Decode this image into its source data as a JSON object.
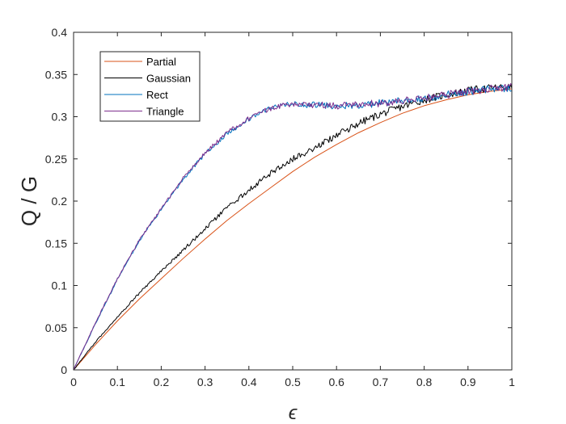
{
  "chart_data": {
    "type": "line",
    "xlabel": "ϵ",
    "ylabel": "Q / G",
    "xlim": [
      0,
      1
    ],
    "ylim": [
      0,
      0.4
    ],
    "xticks": [
      0,
      0.1,
      0.2,
      0.3,
      0.4,
      0.5,
      0.6,
      0.7,
      0.8,
      0.9,
      1
    ],
    "xtick_labels": [
      "0",
      "0.1",
      "0.2",
      "0.3",
      "0.4",
      "0.5",
      "0.6",
      "0.7",
      "0.8",
      "0.9",
      "1"
    ],
    "yticks": [
      0,
      0.05,
      0.1,
      0.15,
      0.2,
      0.25,
      0.3,
      0.35,
      0.4
    ],
    "ytick_labels": [
      "0",
      "0.05",
      "0.1",
      "0.15",
      "0.2",
      "0.25",
      "0.3",
      "0.35",
      "0.4"
    ],
    "grid": false,
    "legend": "top-left",
    "x": [
      0,
      0.05,
      0.1,
      0.15,
      0.2,
      0.25,
      0.3,
      0.35,
      0.4,
      0.45,
      0.5,
      0.55,
      0.6,
      0.65,
      0.7,
      0.75,
      0.8,
      0.85,
      0.9,
      0.95,
      1.0
    ],
    "series": [
      {
        "name": "Partial",
        "color": "#D95319",
        "noisy": false,
        "values": [
          0,
          0.03,
          0.058,
          0.084,
          0.108,
          0.132,
          0.155,
          0.177,
          0.197,
          0.216,
          0.235,
          0.252,
          0.267,
          0.281,
          0.293,
          0.304,
          0.313,
          0.32,
          0.326,
          0.33,
          0.333
        ]
      },
      {
        "name": "Gaussian",
        "color": "#000000",
        "noisy": true,
        "values": [
          0,
          0.033,
          0.063,
          0.091,
          0.117,
          0.142,
          0.167,
          0.192,
          0.213,
          0.233,
          0.25,
          0.263,
          0.278,
          0.292,
          0.303,
          0.312,
          0.32,
          0.326,
          0.331,
          0.334,
          0.335
        ]
      },
      {
        "name": "Rect",
        "color": "#0072BD",
        "noisy": true,
        "values": [
          0,
          0.055,
          0.107,
          0.153,
          0.19,
          0.226,
          0.256,
          0.28,
          0.297,
          0.31,
          0.315,
          0.314,
          0.313,
          0.314,
          0.316,
          0.319,
          0.322,
          0.326,
          0.33,
          0.333,
          0.334
        ]
      },
      {
        "name": "Triangle",
        "color": "#7E2F8E",
        "noisy": true,
        "values": [
          0,
          0.056,
          0.108,
          0.154,
          0.191,
          0.227,
          0.257,
          0.281,
          0.298,
          0.31,
          0.315,
          0.314,
          0.313,
          0.314,
          0.316,
          0.319,
          0.322,
          0.326,
          0.33,
          0.333,
          0.335
        ]
      }
    ]
  }
}
